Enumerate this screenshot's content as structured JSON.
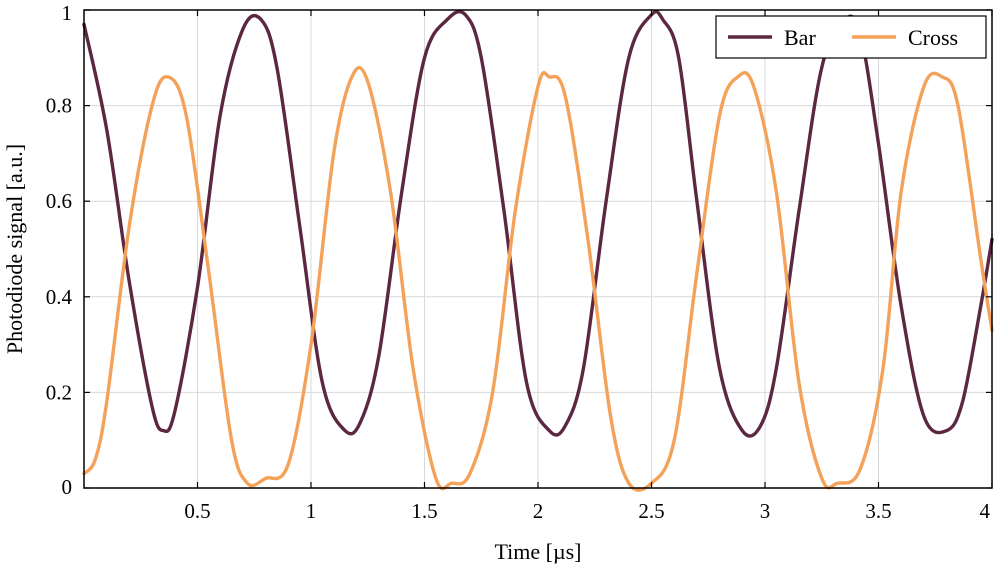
{
  "chart_data": {
    "type": "line",
    "title": "",
    "xlabel": "Time [µs]",
    "ylabel": "Photodiode signal [a.u.]",
    "xlim": [
      0,
      4
    ],
    "ylim": [
      0,
      1
    ],
    "x_ticks": [
      0.5,
      1,
      1.5,
      2,
      2.5,
      3,
      3.5,
      4
    ],
    "x_tick_labels": [
      "0.5",
      "1",
      "1.5",
      "2",
      "2.5",
      "3",
      "3.5",
      "4"
    ],
    "y_ticks": [
      0,
      0.2,
      0.4,
      0.6,
      0.8,
      1
    ],
    "y_tick_labels": [
      "0",
      "0.2",
      "0.4",
      "0.6",
      "0.8",
      "1"
    ],
    "grid": true,
    "legend_position": "top-right",
    "series": [
      {
        "name": "Bar",
        "color": "#5b2741",
        "x": [
          0,
          0.1,
          0.2,
          0.3,
          0.35,
          0.4,
          0.5,
          0.6,
          0.7,
          0.78,
          0.85,
          0.95,
          1.05,
          1.15,
          1.22,
          1.3,
          1.4,
          1.5,
          1.6,
          1.68,
          1.75,
          1.85,
          1.95,
          2.05,
          2.12,
          2.2,
          2.3,
          2.4,
          2.5,
          2.55,
          2.62,
          2.7,
          2.8,
          2.9,
          2.98,
          3.05,
          3.15,
          3.25,
          3.35,
          3.42,
          3.5,
          3.6,
          3.7,
          3.8,
          3.87,
          3.95,
          4.0
        ],
        "values": [
          0.97,
          0.75,
          0.43,
          0.17,
          0.12,
          0.16,
          0.42,
          0.78,
          0.96,
          0.98,
          0.88,
          0.55,
          0.22,
          0.12,
          0.14,
          0.28,
          0.62,
          0.9,
          0.98,
          0.99,
          0.9,
          0.58,
          0.22,
          0.12,
          0.13,
          0.25,
          0.6,
          0.9,
          0.99,
          0.98,
          0.9,
          0.6,
          0.25,
          0.12,
          0.13,
          0.25,
          0.58,
          0.88,
          0.98,
          0.95,
          0.72,
          0.38,
          0.15,
          0.12,
          0.18,
          0.38,
          0.52
        ]
      },
      {
        "name": "Cross",
        "color": "#f4a259",
        "x": [
          0,
          0.05,
          0.1,
          0.2,
          0.3,
          0.37,
          0.45,
          0.55,
          0.65,
          0.72,
          0.8,
          0.9,
          1.0,
          1.1,
          1.18,
          1.25,
          1.35,
          1.45,
          1.55,
          1.62,
          1.7,
          1.8,
          1.9,
          2.0,
          2.05,
          2.12,
          2.22,
          2.32,
          2.4,
          2.5,
          2.6,
          2.7,
          2.8,
          2.88,
          2.95,
          3.05,
          3.15,
          3.25,
          3.32,
          3.42,
          3.52,
          3.6,
          3.7,
          3.78,
          3.85,
          3.95,
          4.0
        ],
        "values": [
          0.03,
          0.06,
          0.18,
          0.55,
          0.8,
          0.86,
          0.78,
          0.45,
          0.1,
          0.01,
          0.02,
          0.05,
          0.3,
          0.7,
          0.86,
          0.85,
          0.62,
          0.25,
          0.02,
          0.01,
          0.03,
          0.2,
          0.58,
          0.84,
          0.86,
          0.82,
          0.52,
          0.15,
          0.01,
          0.01,
          0.1,
          0.45,
          0.78,
          0.86,
          0.84,
          0.62,
          0.22,
          0.02,
          0.01,
          0.04,
          0.25,
          0.62,
          0.84,
          0.86,
          0.8,
          0.48,
          0.33
        ]
      }
    ]
  }
}
